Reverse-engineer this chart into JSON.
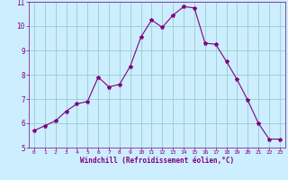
{
  "x": [
    0,
    1,
    2,
    3,
    4,
    5,
    6,
    7,
    8,
    9,
    10,
    11,
    12,
    13,
    14,
    15,
    16,
    17,
    18,
    19,
    20,
    21,
    22,
    23
  ],
  "y": [
    5.7,
    5.9,
    6.1,
    6.5,
    6.8,
    6.9,
    7.9,
    7.5,
    7.6,
    8.35,
    9.55,
    10.25,
    9.95,
    10.45,
    10.8,
    10.75,
    9.3,
    9.25,
    8.55,
    7.8,
    6.95,
    6.0,
    5.35,
    5.35
  ],
  "line_color": "#800080",
  "marker": "*",
  "marker_size": 3,
  "bg_color": "#cceeff",
  "grid_color": "#99cccc",
  "xlabel": "Windchill (Refroidissement éolien,°C)",
  "xlabel_color": "#800080",
  "tick_color": "#800080",
  "ylim": [
    5,
    11
  ],
  "xlim": [
    -0.5,
    23.5
  ],
  "yticks": [
    5,
    6,
    7,
    8,
    9,
    10,
    11
  ],
  "xticks": [
    0,
    1,
    2,
    3,
    4,
    5,
    6,
    7,
    8,
    9,
    10,
    11,
    12,
    13,
    14,
    15,
    16,
    17,
    18,
    19,
    20,
    21,
    22,
    23
  ]
}
